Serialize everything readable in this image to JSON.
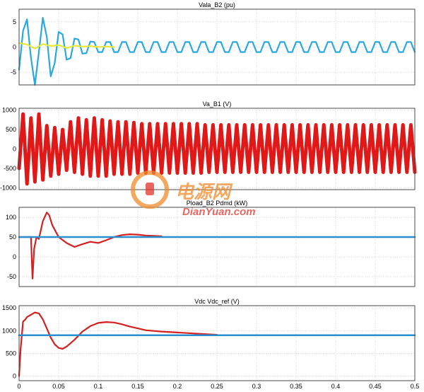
{
  "chart_data": [
    {
      "type": "line",
      "title": "Vala_B2 (pu)",
      "ylim": [
        -7.5,
        7.5
      ],
      "yticks": [
        -5,
        0,
        5
      ],
      "xlim": [
        0,
        0.5
      ],
      "grid": true,
      "series": [
        {
          "color": "#2aa8e0",
          "x": [
            0,
            0.005,
            0.01,
            0.015,
            0.02,
            0.025,
            0.03,
            0.035,
            0.04,
            0.045,
            0.05,
            0.055,
            0.06,
            0.065,
            0.07,
            0.075,
            0.08,
            0.085,
            0.09,
            0.095,
            0.1,
            0.105,
            0.11,
            0.115,
            0.12,
            0.125,
            0.13,
            0.135,
            0.14,
            0.145,
            0.15,
            0.155,
            0.16,
            0.165,
            0.17,
            0.175,
            0.18,
            0.185,
            0.19,
            0.195,
            0.2,
            0.205,
            0.21,
            0.215,
            0.22,
            0.225,
            0.23,
            0.235,
            0.24,
            0.245,
            0.25,
            0.255,
            0.26,
            0.265,
            0.27,
            0.275,
            0.28,
            0.285,
            0.29,
            0.295,
            0.3,
            0.305,
            0.31,
            0.315,
            0.32,
            0.325,
            0.33,
            0.335,
            0.34,
            0.345,
            0.35,
            0.355,
            0.36,
            0.365,
            0.37,
            0.375,
            0.38,
            0.385,
            0.39,
            0.395,
            0.4,
            0.405,
            0.41,
            0.415,
            0.42,
            0.425,
            0.43,
            0.435,
            0.44,
            0.445,
            0.45,
            0.455,
            0.46,
            0.465,
            0.47,
            0.475,
            0.48,
            0.485,
            0.49,
            0.495,
            0.5
          ],
          "y": [
            -4.5,
            3.2,
            5.5,
            -2.1,
            -7.5,
            -1.0,
            5.8,
            2.0,
            -5.8,
            -3.2,
            3.0,
            2.5,
            -2.5,
            -2.2,
            1.7,
            1.5,
            -1.3,
            -1.2,
            1.1,
            1.0,
            -1.0,
            -1.0,
            1.0,
            1.0,
            -1.0,
            -1.0,
            1.0,
            1.0,
            -1.0,
            -1.0,
            1.0,
            1.0,
            -1.0,
            -1.0,
            1.0,
            1.0,
            -1.0,
            -1.0,
            1.0,
            1.0,
            -1.0,
            -1.0,
            1.0,
            1.0,
            -1.0,
            -1.0,
            1.0,
            1.0,
            -1.0,
            -1.0,
            1.0,
            1.0,
            -1.0,
            -1.0,
            1.0,
            1.0,
            -1.0,
            -1.0,
            1.0,
            1.0,
            -1.0,
            -1.0,
            1.0,
            1.0,
            -1.0,
            -1.0,
            1.0,
            1.0,
            -1.0,
            -1.0,
            1.0,
            1.0,
            -1.0,
            -1.0,
            1.0,
            1.0,
            -1.0,
            -1.0,
            1.0,
            1.0,
            -1.0,
            -1.0,
            1.0,
            1.0,
            -1.0,
            -1.0,
            1.0,
            1.0,
            -1.0,
            -1.0,
            1.0,
            1.0,
            -1.0,
            -1.0,
            1.0,
            1.0,
            -1.0,
            -1.0,
            1.0,
            1.0,
            -1.0
          ]
        },
        {
          "color": "#e8e83a",
          "x": [
            0,
            0.01,
            0.02,
            0.03,
            0.04,
            0.05,
            0.06,
            0.07,
            0.08,
            0.09,
            0.1,
            0.11,
            0.12
          ],
          "y": [
            0.8,
            0.5,
            -0.3,
            0.6,
            0.2,
            0.4,
            -0.2,
            0.3,
            0.1,
            0.2,
            0.0,
            0.1,
            0.0
          ]
        }
      ]
    },
    {
      "type": "line",
      "title": "Va_B1 (V)",
      "ylim": [
        -1050,
        1050
      ],
      "yticks": [
        -1000,
        -500,
        0,
        500,
        1000
      ],
      "xlim": [
        0,
        0.5
      ],
      "grid": true,
      "series": [
        {
          "color": "#e01818",
          "x": [
            0,
            0.005,
            0.01,
            0.015,
            0.02,
            0.025,
            0.03,
            0.035,
            0.04,
            0.045,
            0.05,
            0.055,
            0.06,
            0.065,
            0.07,
            0.075,
            0.08,
            0.085,
            0.09,
            0.095,
            0.1,
            0.105,
            0.11,
            0.115,
            0.12,
            0.125,
            0.13,
            0.135,
            0.14,
            0.145,
            0.15,
            0.155,
            0.16,
            0.165,
            0.17,
            0.175,
            0.18,
            0.185,
            0.19,
            0.195,
            0.2,
            0.205,
            0.21,
            0.215,
            0.22,
            0.225,
            0.23,
            0.235,
            0.24,
            0.245,
            0.25,
            0.255,
            0.26,
            0.265,
            0.27,
            0.275,
            0.28,
            0.285,
            0.29,
            0.295,
            0.3,
            0.305,
            0.31,
            0.315,
            0.32,
            0.325,
            0.33,
            0.335,
            0.34,
            0.345,
            0.35,
            0.355,
            0.36,
            0.365,
            0.37,
            0.375,
            0.38,
            0.385,
            0.39,
            0.395,
            0.4,
            0.405,
            0.41,
            0.415,
            0.42,
            0.425,
            0.43,
            0.435,
            0.44,
            0.445,
            0.45,
            0.455,
            0.46,
            0.465,
            0.47,
            0.475,
            0.48,
            0.485,
            0.49,
            0.495,
            0.5
          ],
          "y": [
            -500,
            900,
            -900,
            800,
            -850,
            900,
            -800,
            600,
            -700,
            550,
            -650,
            500,
            -550,
            700,
            -600,
            800,
            -650,
            750,
            -700,
            800,
            -700,
            750,
            -700,
            720,
            -650,
            700,
            -650,
            700,
            -650,
            680,
            -620,
            650,
            -620,
            650,
            -620,
            650,
            -620,
            650,
            -620,
            650,
            -620,
            650,
            -620,
            650,
            -620,
            650,
            -620,
            620,
            -600,
            620,
            -600,
            620,
            -600,
            620,
            -600,
            620,
            -600,
            620,
            -600,
            620,
            -600,
            620,
            -600,
            620,
            -600,
            620,
            -600,
            620,
            -600,
            620,
            -600,
            620,
            -600,
            620,
            -600,
            620,
            -600,
            620,
            -600,
            620,
            -600,
            620,
            -600,
            620,
            -600,
            620,
            -600,
            620,
            -600,
            620,
            -600,
            620,
            -600,
            620,
            -600,
            620,
            -600,
            620,
            -600,
            620,
            -600
          ]
        }
      ]
    },
    {
      "type": "line",
      "title": "Pload_B2 Pdmd (kW)",
      "ylim": [
        -75,
        125
      ],
      "yticks": [
        -50,
        0,
        50,
        100
      ],
      "xlim": [
        0,
        0.5
      ],
      "grid": true,
      "series": [
        {
          "color": "#d42020",
          "x": [
            0,
            0.005,
            0.01,
            0.015,
            0.017,
            0.019,
            0.022,
            0.025,
            0.03,
            0.035,
            0.038,
            0.042,
            0.05,
            0.06,
            0.07,
            0.08,
            0.09,
            0.1,
            0.11,
            0.12,
            0.13,
            0.14,
            0.15,
            0.16,
            0.17,
            0.18
          ],
          "y": [
            50,
            50,
            50,
            50,
            -55,
            20,
            50,
            45,
            90,
            112,
            105,
            80,
            50,
            35,
            25,
            32,
            38,
            35,
            42,
            50,
            55,
            57,
            56,
            54,
            53,
            52
          ]
        },
        {
          "color": "#2a8fd0",
          "x": [
            0,
            0.5
          ],
          "y": [
            50,
            50
          ]
        }
      ]
    },
    {
      "type": "line",
      "title": "Vdc Vdc_ref (V)",
      "ylim": [
        -100,
        1550
      ],
      "yticks": [
        0,
        500,
        1000,
        1500
      ],
      "xlim": [
        0,
        0.5
      ],
      "xticks": [
        0,
        0.05,
        0.1,
        0.15,
        0.2,
        0.25,
        0.3,
        0.35,
        0.4,
        0.45,
        0.5
      ],
      "xticklabels": [
        "0",
        "0.05",
        "0.1",
        "0.15",
        "0.2",
        "0.25",
        "0.3",
        "0.35",
        "0.4",
        "0.45",
        "0.5"
      ],
      "grid": true,
      "series": [
        {
          "color": "#d42020",
          "x": [
            0,
            0.002,
            0.005,
            0.008,
            0.01,
            0.015,
            0.02,
            0.025,
            0.03,
            0.035,
            0.04,
            0.045,
            0.05,
            0.055,
            0.06,
            0.07,
            0.08,
            0.09,
            0.1,
            0.11,
            0.12,
            0.13,
            0.14,
            0.15,
            0.16,
            0.18,
            0.2,
            0.22,
            0.24,
            0.25
          ],
          "y": [
            0,
            600,
            1200,
            1250,
            1300,
            1350,
            1400,
            1380,
            1250,
            1050,
            850,
            700,
            620,
            600,
            650,
            800,
            980,
            1100,
            1170,
            1190,
            1180,
            1140,
            1090,
            1050,
            1010,
            980,
            960,
            940,
            920,
            910
          ]
        },
        {
          "color": "#2a8fd0",
          "x": [
            0,
            0.5
          ],
          "y": [
            900,
            900
          ]
        }
      ]
    }
  ],
  "watermark": {
    "cn_text": "电源网",
    "en_text": "DianYuan.com",
    "colors": {
      "orange": "#f08a2c",
      "red": "#e2342a"
    }
  }
}
